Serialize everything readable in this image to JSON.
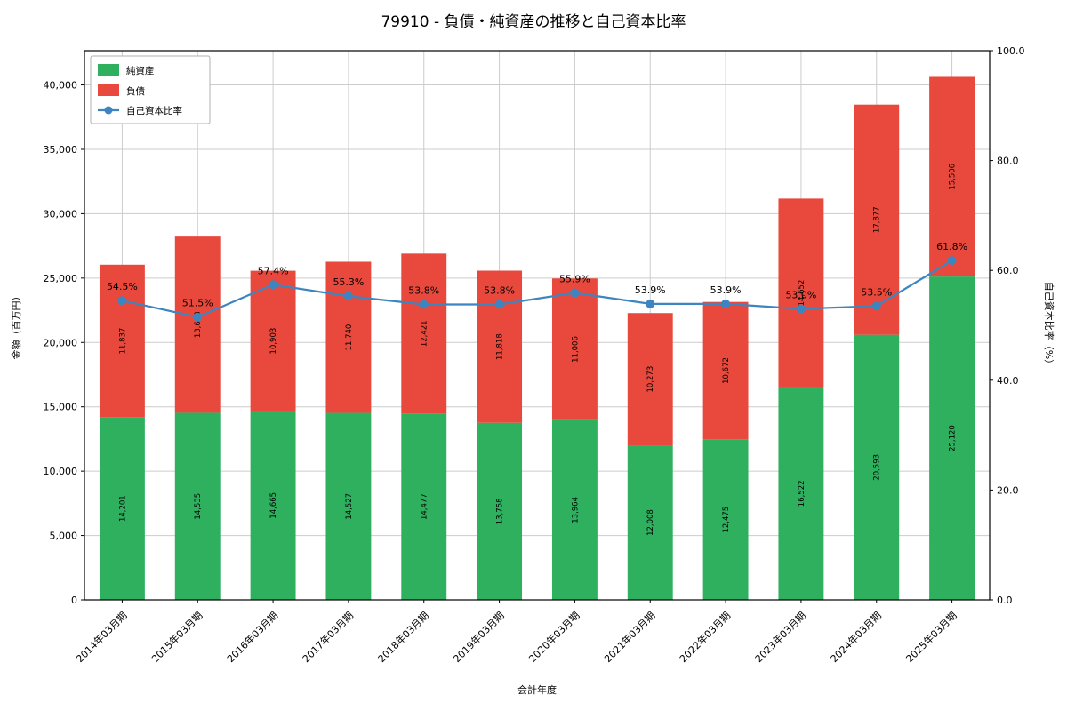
{
  "title": "79910 - 負債・純資産の推移と自己資本比率",
  "chart_data": {
    "type": "bar",
    "stacked": true,
    "grid": true,
    "legend_position": "upper-left",
    "xlabel": "会計年度",
    "ylabel_left": "金額（百万円）",
    "ylabel_right": "自己資本比率（%）",
    "ylim_left": [
      0,
      42660
    ],
    "ylim_right": [
      0,
      100
    ],
    "left_ticks": [
      0,
      5000,
      10000,
      15000,
      20000,
      25000,
      30000,
      35000,
      40000
    ],
    "right_ticks": [
      0,
      20,
      40,
      60,
      80,
      100
    ],
    "categories": [
      "2014年03月期",
      "2015年03月期",
      "2016年03月期",
      "2017年03月期",
      "2018年03月期",
      "2019年03月期",
      "2020年03月期",
      "2021年03月期",
      "2022年03月期",
      "2023年03月期",
      "2024年03月期",
      "2025年03月期"
    ],
    "series": [
      {
        "name": "純資産",
        "color": "#2eb05f",
        "values": [
          14201,
          14535,
          14665,
          14527,
          14477,
          13758,
          13964,
          12008,
          12475,
          16522,
          20593,
          25120
        ]
      },
      {
        "name": "負債",
        "color": "#e8493c",
        "values": [
          11837,
          13688,
          10903,
          11740,
          12421,
          11818,
          11006,
          10273,
          10672,
          14652,
          17877,
          15506
        ]
      }
    ],
    "line_series": {
      "name": "自己資本比率",
      "color": "#3d85c0",
      "label_color": "#4a94c8",
      "values": [
        54.5,
        51.5,
        57.4,
        55.3,
        53.8,
        53.8,
        55.9,
        53.9,
        53.9,
        53.0,
        53.5,
        61.8
      ],
      "labels": [
        "54.5%",
        "51.5%",
        "57.4%",
        "55.3%",
        "53.8%",
        "53.8%",
        "55.9%",
        "53.9%",
        "53.9%",
        "53.0%",
        "53.5%",
        "61.8%"
      ]
    }
  }
}
